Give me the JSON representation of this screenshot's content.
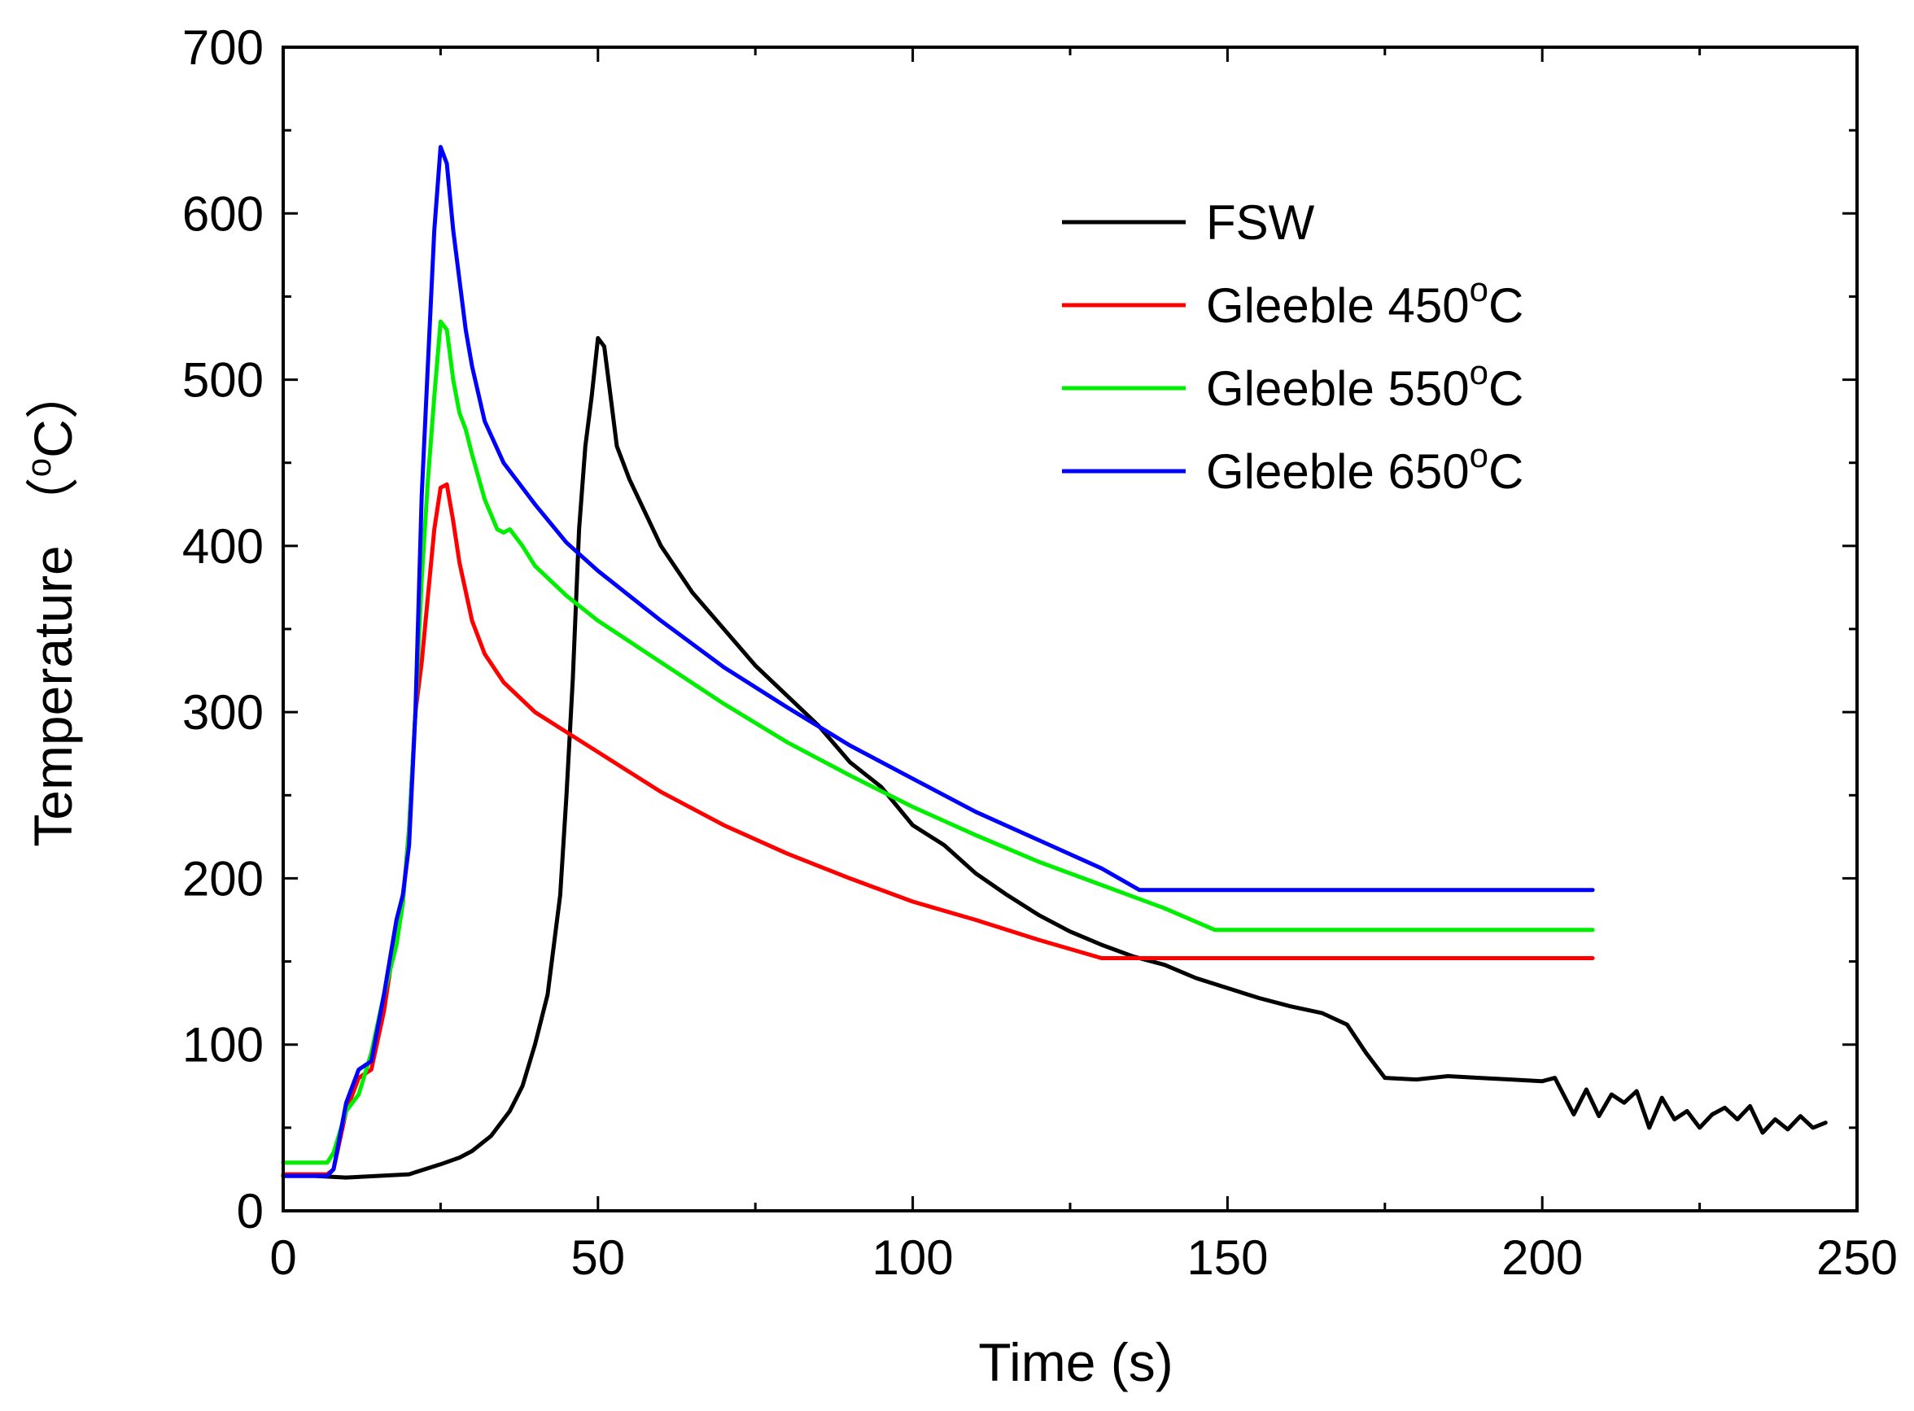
{
  "chart_data": {
    "type": "line",
    "xlabel": "Time (s)",
    "ylabel": {
      "main": "Temperature",
      "open": "（",
      "sup": "o",
      "unit": "C",
      "close": "）"
    },
    "xlim": [
      0,
      250
    ],
    "ylim": [
      0,
      700
    ],
    "xticks": [
      0,
      50,
      100,
      150,
      200,
      250
    ],
    "yticks": [
      0,
      100,
      200,
      300,
      400,
      500,
      600,
      700
    ],
    "grid": false,
    "legend_position": "top-right",
    "series": [
      {
        "name": "FSW",
        "color": "#000000",
        "points": [
          [
            0,
            21
          ],
          [
            5,
            21
          ],
          [
            10,
            20
          ],
          [
            15,
            21
          ],
          [
            20,
            22
          ],
          [
            25,
            28
          ],
          [
            28,
            32
          ],
          [
            30,
            36
          ],
          [
            33,
            45
          ],
          [
            36,
            60
          ],
          [
            38,
            75
          ],
          [
            40,
            100
          ],
          [
            42,
            130
          ],
          [
            44,
            190
          ],
          [
            45,
            250
          ],
          [
            46,
            320
          ],
          [
            47,
            410
          ],
          [
            48,
            460
          ],
          [
            49,
            490
          ],
          [
            50,
            525
          ],
          [
            51,
            520
          ],
          [
            52,
            490
          ],
          [
            53,
            460
          ],
          [
            55,
            440
          ],
          [
            60,
            400
          ],
          [
            65,
            372
          ],
          [
            70,
            350
          ],
          [
            75,
            328
          ],
          [
            80,
            310
          ],
          [
            85,
            292
          ],
          [
            90,
            270
          ],
          [
            95,
            255
          ],
          [
            100,
            232
          ],
          [
            105,
            220
          ],
          [
            110,
            203
          ],
          [
            115,
            190
          ],
          [
            120,
            178
          ],
          [
            125,
            168
          ],
          [
            130,
            160
          ],
          [
            135,
            153
          ],
          [
            140,
            148
          ],
          [
            145,
            140
          ],
          [
            150,
            134
          ],
          [
            155,
            128
          ],
          [
            160,
            123
          ],
          [
            165,
            119
          ],
          [
            169,
            112
          ],
          [
            172,
            95
          ],
          [
            175,
            80
          ],
          [
            180,
            79
          ],
          [
            185,
            81
          ],
          [
            190,
            80
          ],
          [
            195,
            79
          ],
          [
            200,
            78
          ],
          [
            202,
            80
          ],
          [
            205,
            58
          ],
          [
            207,
            73
          ],
          [
            209,
            57
          ],
          [
            211,
            70
          ],
          [
            213,
            65
          ],
          [
            215,
            72
          ],
          [
            217,
            50
          ],
          [
            219,
            68
          ],
          [
            221,
            55
          ],
          [
            223,
            60
          ],
          [
            225,
            50
          ],
          [
            227,
            58
          ],
          [
            229,
            62
          ],
          [
            231,
            55
          ],
          [
            233,
            63
          ],
          [
            235,
            47
          ],
          [
            237,
            55
          ],
          [
            239,
            49
          ],
          [
            241,
            57
          ],
          [
            243,
            50
          ],
          [
            245,
            53
          ]
        ]
      },
      {
        "name": "Gleeble 450°C",
        "label_main": "Gleeble 450",
        "label_sup": "o",
        "label_unit": "C",
        "color": "#ff0000",
        "points": [
          [
            0,
            22
          ],
          [
            7,
            22
          ],
          [
            8,
            25
          ],
          [
            10,
            60
          ],
          [
            12,
            80
          ],
          [
            14,
            85
          ],
          [
            16,
            120
          ],
          [
            18,
            170
          ],
          [
            19,
            185
          ],
          [
            20,
            230
          ],
          [
            21,
            300
          ],
          [
            22,
            330
          ],
          [
            23,
            370
          ],
          [
            24,
            410
          ],
          [
            25,
            435
          ],
          [
            26,
            437
          ],
          [
            27,
            415
          ],
          [
            28,
            390
          ],
          [
            30,
            355
          ],
          [
            32,
            335
          ],
          [
            35,
            318
          ],
          [
            40,
            300
          ],
          [
            45,
            288
          ],
          [
            50,
            276
          ],
          [
            60,
            252
          ],
          [
            70,
            232
          ],
          [
            80,
            215
          ],
          [
            90,
            200
          ],
          [
            100,
            186
          ],
          [
            110,
            175
          ],
          [
            120,
            163
          ],
          [
            130,
            152
          ],
          [
            135,
            152
          ],
          [
            150,
            152
          ],
          [
            175,
            152
          ],
          [
            200,
            152
          ],
          [
            208,
            152
          ]
        ]
      },
      {
        "name": "Gleeble 550°C",
        "label_main": "Gleeble 550",
        "label_sup": "o",
        "label_unit": "C",
        "color": "#00ee00",
        "points": [
          [
            0,
            29
          ],
          [
            7,
            29
          ],
          [
            8,
            35
          ],
          [
            10,
            60
          ],
          [
            12,
            70
          ],
          [
            14,
            95
          ],
          [
            16,
            130
          ],
          [
            18,
            160
          ],
          [
            19,
            185
          ],
          [
            20,
            230
          ],
          [
            21,
            300
          ],
          [
            22,
            380
          ],
          [
            23,
            440
          ],
          [
            24,
            490
          ],
          [
            25,
            535
          ],
          [
            26,
            530
          ],
          [
            27,
            500
          ],
          [
            28,
            480
          ],
          [
            29,
            470
          ],
          [
            30,
            455
          ],
          [
            32,
            428
          ],
          [
            34,
            410
          ],
          [
            35,
            408
          ],
          [
            36,
            410
          ],
          [
            38,
            400
          ],
          [
            40,
            388
          ],
          [
            45,
            370
          ],
          [
            50,
            355
          ],
          [
            60,
            330
          ],
          [
            70,
            305
          ],
          [
            80,
            282
          ],
          [
            90,
            262
          ],
          [
            100,
            243
          ],
          [
            110,
            226
          ],
          [
            120,
            210
          ],
          [
            130,
            196
          ],
          [
            140,
            182
          ],
          [
            148,
            169
          ],
          [
            160,
            169
          ],
          [
            180,
            169
          ],
          [
            200,
            169
          ],
          [
            208,
            169
          ]
        ]
      },
      {
        "name": "Gleeble 650°C",
        "label_main": "Gleeble 650",
        "label_sup": "o",
        "label_unit": "C",
        "color": "#0000ff",
        "points": [
          [
            0,
            21
          ],
          [
            7,
            21
          ],
          [
            8,
            25
          ],
          [
            10,
            65
          ],
          [
            12,
            85
          ],
          [
            14,
            90
          ],
          [
            16,
            130
          ],
          [
            18,
            175
          ],
          [
            19,
            190
          ],
          [
            20,
            220
          ],
          [
            21,
            300
          ],
          [
            22,
            430
          ],
          [
            23,
            510
          ],
          [
            24,
            590
          ],
          [
            25,
            640
          ],
          [
            26,
            630
          ],
          [
            27,
            590
          ],
          [
            28,
            560
          ],
          [
            29,
            530
          ],
          [
            30,
            508
          ],
          [
            32,
            475
          ],
          [
            35,
            450
          ],
          [
            40,
            425
          ],
          [
            45,
            402
          ],
          [
            50,
            385
          ],
          [
            60,
            355
          ],
          [
            70,
            327
          ],
          [
            80,
            303
          ],
          [
            90,
            280
          ],
          [
            100,
            260
          ],
          [
            110,
            240
          ],
          [
            120,
            223
          ],
          [
            130,
            206
          ],
          [
            136,
            193
          ],
          [
            150,
            193
          ],
          [
            175,
            193
          ],
          [
            200,
            193
          ],
          [
            208,
            193
          ]
        ]
      }
    ]
  }
}
